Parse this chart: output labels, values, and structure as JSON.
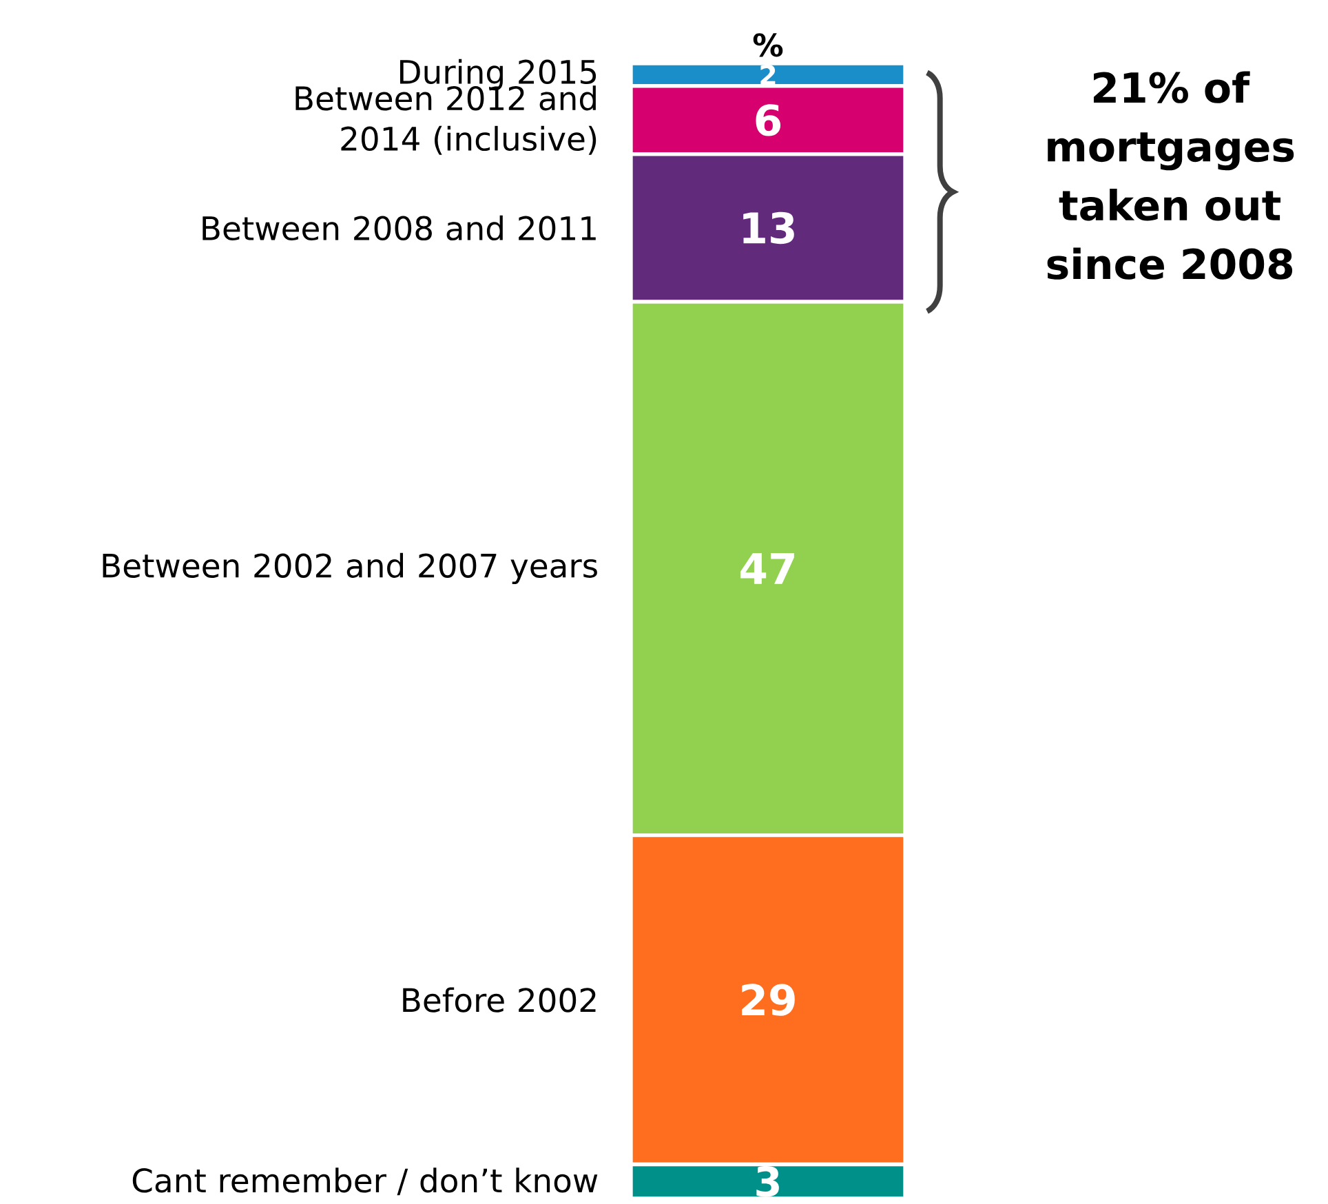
{
  "chart_data": {
    "type": "bar",
    "stacked": true,
    "ylabel": "%",
    "categories": [
      null
    ],
    "series": [
      {
        "name": "Cant remember / don’t know",
        "color": "#00908a",
        "values": [
          3
        ]
      },
      {
        "name": "Before 2002",
        "color": "#ff6d1f",
        "values": [
          29
        ]
      },
      {
        "name": "Between 2002 and 2007 years",
        "color": "#92d050",
        "values": [
          47
        ]
      },
      {
        "name": "Between 2008 and 2011",
        "color": "#612a7a",
        "values": [
          13
        ]
      },
      {
        "name": "Between 2012 and 2014 (inclusive)",
        "color": "#d6006e",
        "values": [
          6
        ]
      },
      {
        "name": "During 2015",
        "color": "#1a8ec9",
        "values": [
          2
        ]
      }
    ],
    "data_labels": true,
    "legend": false,
    "annotations": [
      "21% of mortgages taken out since 2008"
    ]
  }
}
